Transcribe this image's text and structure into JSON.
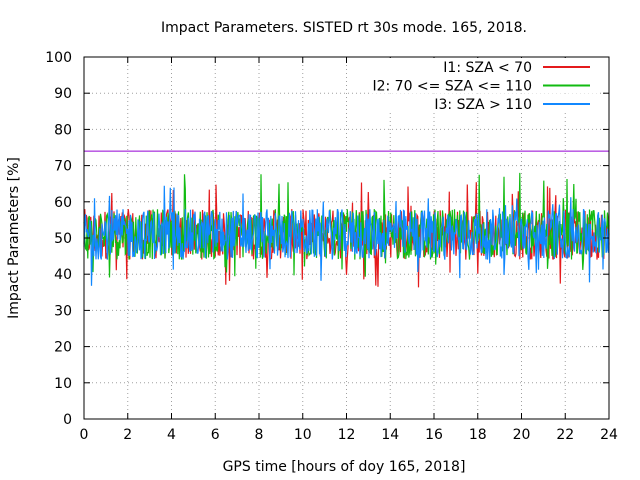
{
  "chart_data": {
    "type": "line",
    "title": "Impact Parameters. SISTED rt 30s mode. 165, 2018.",
    "xlabel": "GPS time [hours of doy 165, 2018]",
    "ylabel": "Impact Parameters [%]",
    "xlim": [
      0,
      24
    ],
    "ylim": [
      0,
      100
    ],
    "xticks": [
      0,
      2,
      4,
      6,
      8,
      10,
      12,
      14,
      16,
      18,
      20,
      22,
      24
    ],
    "yticks": [
      0,
      10,
      20,
      30,
      40,
      50,
      60,
      70,
      80,
      90,
      100
    ],
    "grid": true,
    "legend_position": "top-right",
    "threshold": {
      "value": 74,
      "color": "#9400d3"
    },
    "series": [
      {
        "name": "I1: SZA < 70",
        "color": "#e41a1c",
        "mean": 51,
        "band": [
          44,
          58
        ],
        "extremes": [
          36,
          66
        ]
      },
      {
        "name": "I2: 70 <= SZA <= 110",
        "color": "#11bb11",
        "mean": 51,
        "band": [
          44,
          58
        ],
        "extremes": [
          39,
          69
        ]
      },
      {
        "name": "I3: SZA > 110",
        "color": "#1188ff",
        "mean": 51,
        "band": [
          44,
          58
        ],
        "extremes": [
          36,
          65
        ]
      }
    ]
  }
}
